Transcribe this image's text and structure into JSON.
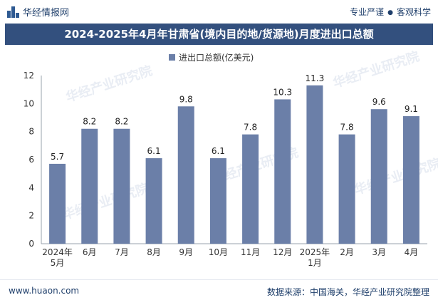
{
  "header": {
    "brand": "华经情报网",
    "tags": [
      "专业严谨",
      "客观科学"
    ]
  },
  "footer": {
    "website": "www.huaon.com",
    "source": "数据来源：中国海关，华经产业研究院整理"
  },
  "watermark": "华经产业研究院",
  "colors": {
    "bar": "#6b7fa8",
    "title_bg": "#33507e"
  },
  "chart_data": {
    "type": "bar",
    "title": "2024-2025年4月年甘肃省(境内目的地/货源地)月度进出口总额",
    "legend": "进出口总额(亿美元)",
    "categories": [
      [
        "2024年",
        "5月"
      ],
      [
        "6月"
      ],
      [
        "7月"
      ],
      [
        "8月"
      ],
      [
        "9月"
      ],
      [
        "10月"
      ],
      [
        "11月"
      ],
      [
        "12月"
      ],
      [
        "2025年",
        "1月"
      ],
      [
        "2月"
      ],
      [
        "3月"
      ],
      [
        "4月"
      ]
    ],
    "values": [
      5.7,
      8.2,
      8.2,
      6.1,
      9.8,
      6.1,
      7.8,
      10.3,
      11.3,
      7.8,
      9.6,
      9.1
    ],
    "ylim": [
      0,
      12
    ],
    "yticks": [
      0,
      2,
      4,
      6,
      8,
      10,
      12
    ]
  }
}
